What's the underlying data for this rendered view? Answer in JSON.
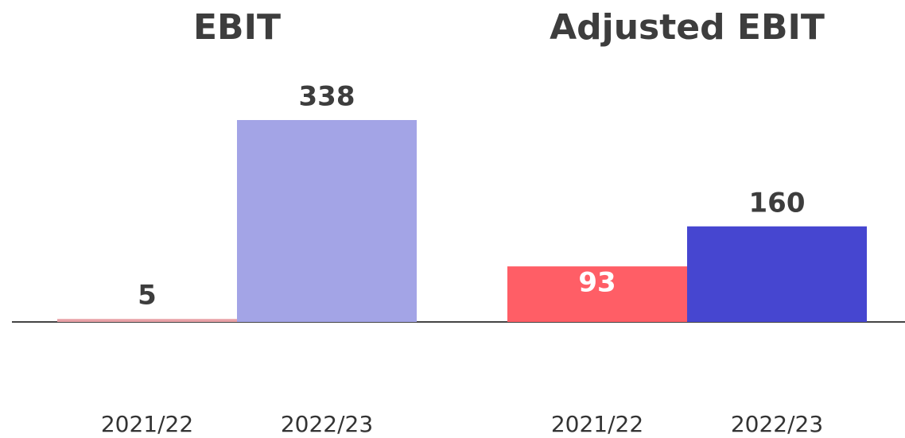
{
  "chart_data": [
    {
      "type": "bar",
      "title": "EBIT",
      "categories": [
        "2021/22",
        "2022/23"
      ],
      "values": [
        5,
        338
      ],
      "colors": [
        "#e8a1a6",
        "#a3a4e6"
      ],
      "label_positions": [
        "outside",
        "outside"
      ]
    },
    {
      "type": "bar",
      "title": "Adjusted EBIT",
      "categories": [
        "2021/22",
        "2022/23"
      ],
      "values": [
        93,
        160
      ],
      "colors": [
        "#ff5e66",
        "#4646d0"
      ],
      "label_positions": [
        "inside",
        "outside"
      ]
    }
  ]
}
